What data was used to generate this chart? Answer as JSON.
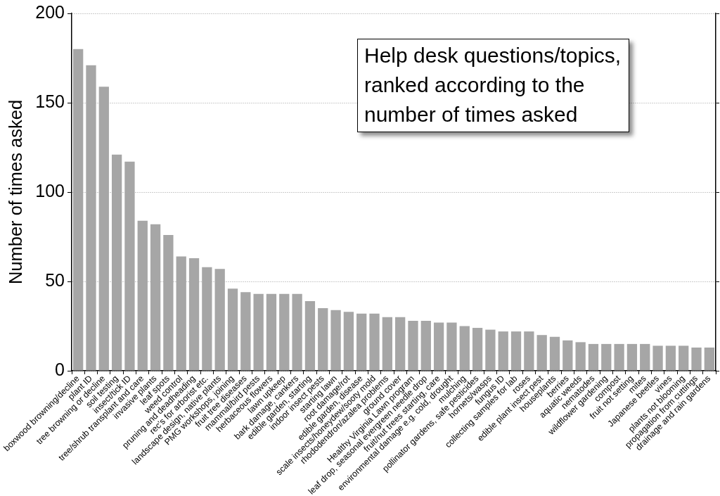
{
  "chart_data": {
    "type": "bar",
    "title": "Help desk questions/topics, ranked according to the number of times asked",
    "ylabel": "Number of times asked",
    "categories": [
      "boxwood browning/decline",
      "plant ID",
      "tree browning or decline",
      "soil testing",
      "insect/tick ID",
      "tree/shrub transplant and care",
      "invasive plants",
      "leaf spots",
      "weed control",
      "pruning and deadheading",
      "rec's for arborist etc.",
      "landscape design, native plants",
      "PMG workshops, joining",
      "fruit tree diseases",
      "mammal/bird pests",
      "herbaceous flowers",
      "lawn upkeep",
      "bark damage, cankers",
      "edible garden, starting",
      "indoor insect pests",
      "starting lawn",
      "root damage/rot",
      "edible garden, disease",
      "scale insects/honeydew/sooty mold",
      "rhododendron/azalea problems",
      "ground cover",
      "Healthy Virginia Lawn program",
      "leaf drop, seasonal evergreen needle drop",
      "fruit/nut trees starting, care",
      "environmental damage e.g. cold, drought",
      "mulching",
      "pollinator gardens, safe pesticides",
      "hornets/wasps",
      "fungus ID",
      "collecting samples for lab",
      "roses",
      "edible plant insect pest",
      "houseplants",
      "berries",
      "aquatic weeds",
      "nematodes",
      "wildflower gardening",
      "compost",
      "fruit not setting",
      "mites",
      "Japanese beetles",
      "vines",
      "plants not blooming",
      "propagation from cuttings",
      "drainage and rain gardens"
    ],
    "values": [
      180,
      171,
      159,
      121,
      117,
      84,
      82,
      76,
      64,
      63,
      58,
      57,
      46,
      44,
      43,
      43,
      43,
      43,
      39,
      35,
      34,
      33,
      32,
      32,
      30,
      30,
      28,
      28,
      27,
      27,
      25,
      24,
      23,
      22,
      22,
      22,
      20,
      19,
      17,
      16,
      15,
      15,
      15,
      15,
      15,
      14,
      14,
      14,
      13,
      13
    ],
    "color": "#a6a6a6",
    "ylim": [
      0,
      200
    ],
    "yticks": [
      0,
      50,
      100,
      150,
      200
    ],
    "grid": "y"
  }
}
